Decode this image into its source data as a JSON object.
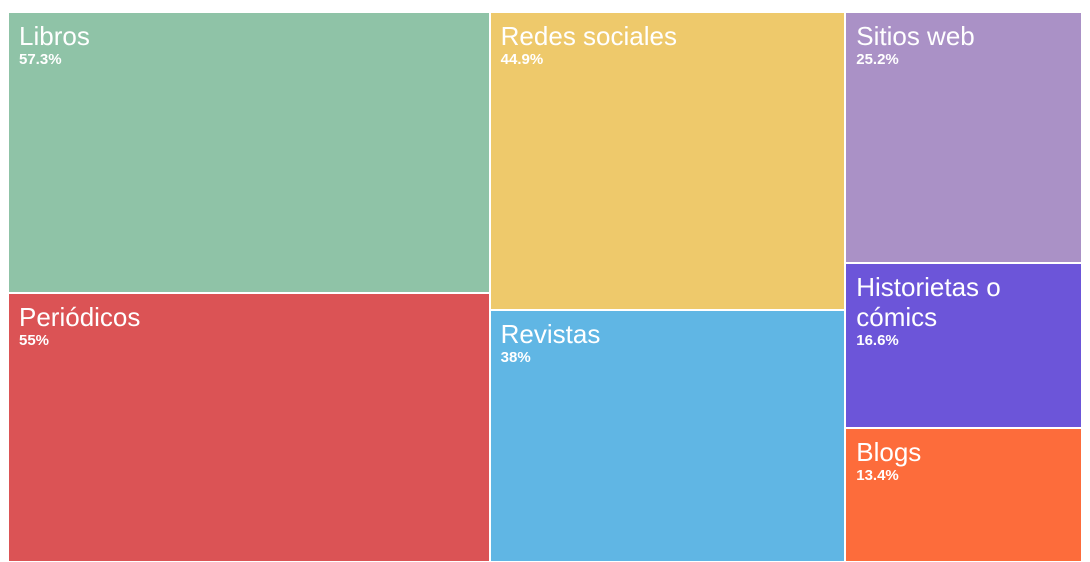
{
  "chart_data": {
    "type": "treemap",
    "categories": [
      "Libros",
      "Periódicos",
      "Redes sociales",
      "Revistas",
      "Sitios web",
      "Historietas o cómics",
      "Blogs"
    ],
    "values": [
      57.3,
      55,
      44.9,
      38,
      25.2,
      16.6,
      13.4
    ],
    "value_labels": [
      "57.3%",
      "55%",
      "44.9%",
      "38%",
      "25.2%",
      "16.6%",
      "13.4%"
    ],
    "colors": [
      "#8fc3a7",
      "#db5355",
      "#eec96b",
      "#60b6e4",
      "#aa91c6",
      "#6c55d9",
      "#fd6c3b"
    ]
  }
}
